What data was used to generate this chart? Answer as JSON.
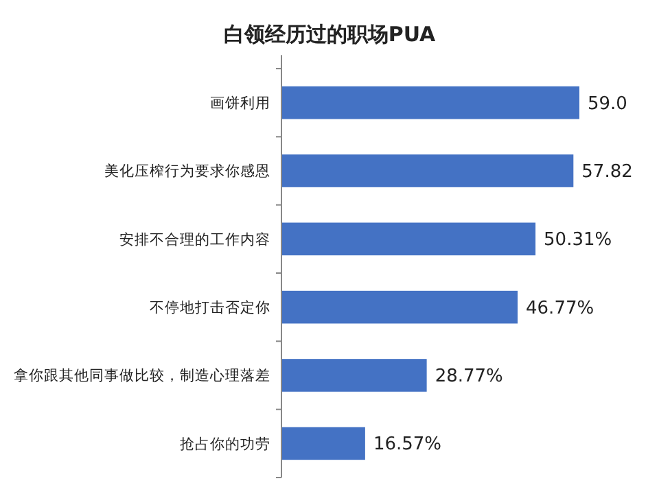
{
  "chart_data": {
    "type": "bar",
    "orientation": "horizontal",
    "title": "白领经历过的职场PUA",
    "categories": [
      "画饼利用",
      "美化压榨行为要求你感恩",
      "安排不合理的工作内容",
      "不停地打击否定你",
      "拿你跟其他同事做比较，制造心理落差",
      "抢占你的功劳"
    ],
    "values": [
      59.0,
      57.82,
      50.31,
      46.77,
      28.77,
      16.57
    ],
    "value_labels": [
      "59.0",
      "57.82",
      "50.31%",
      "46.77%",
      "28.77%",
      "16.57%"
    ],
    "color": "#4472c4"
  }
}
